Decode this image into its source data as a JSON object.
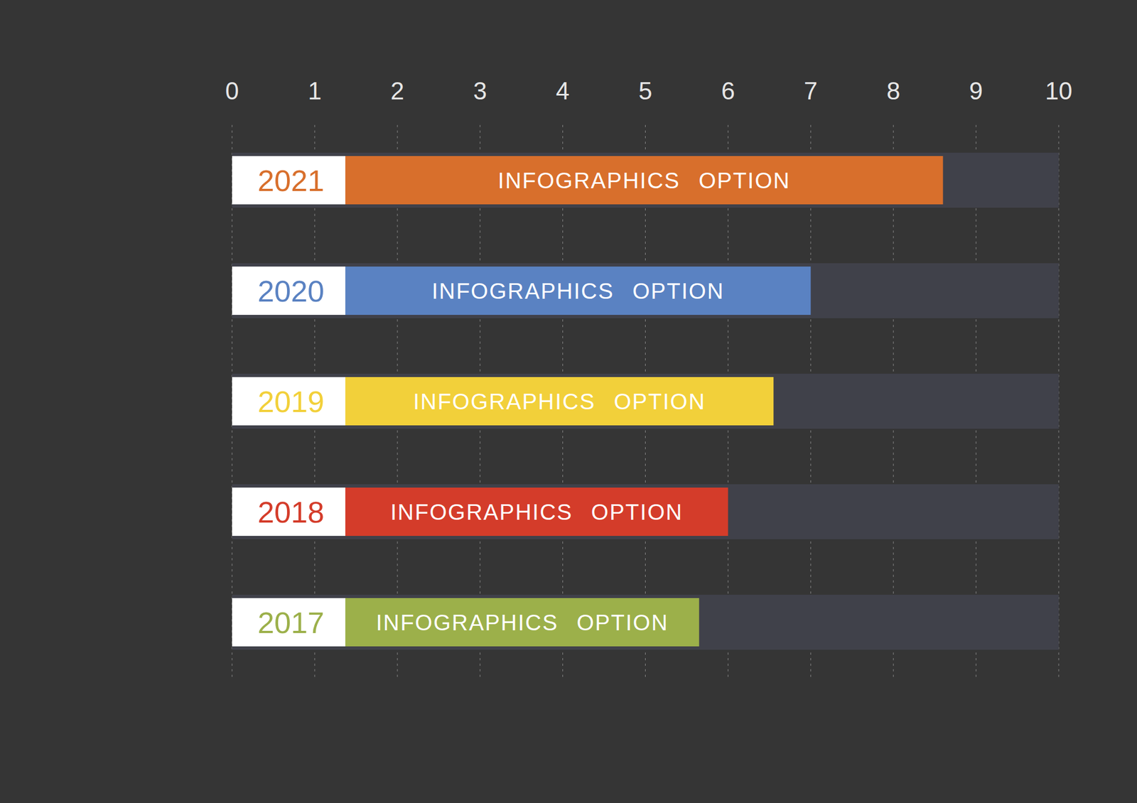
{
  "chart_data": {
    "type": "bar",
    "orientation": "horizontal",
    "categories": [
      "2021",
      "2020",
      "2019",
      "2018",
      "2017"
    ],
    "values": [
      8.6,
      7,
      6.55,
      6,
      5.65
    ],
    "colors": [
      "#d86f2c",
      "#5a82c2",
      "#f2d03a",
      "#d43c2a",
      "#9cb04a"
    ],
    "annotations": [
      "INFOGRAPHICS OPTION",
      "INFOGRAPHICS OPTION",
      "INFOGRAPHICS OPTION",
      "INFOGRAPHICS OPTION",
      "INFOGRAPHICS OPTION"
    ],
    "xlim": [
      0,
      10
    ],
    "xticks": [
      0,
      1,
      2,
      3,
      4,
      5,
      6,
      7,
      8,
      9,
      10
    ],
    "grid": true
  }
}
